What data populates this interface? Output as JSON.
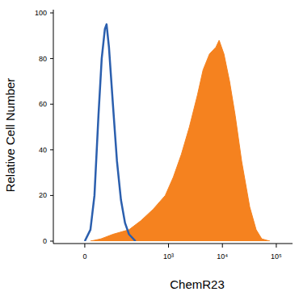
{
  "chart_data": {
    "type": "line",
    "log": "x",
    "x_label": "ChemR23",
    "y_label": "Relative Cell Number",
    "xlim": [
      -100,
      200000
    ],
    "xticks": [
      0,
      {
        "value": 1000,
        "label": "10³"
      },
      {
        "value": 10000,
        "label": "10⁴"
      },
      {
        "value": 100000,
        "label": "10⁵"
      }
    ],
    "ylim": [
      0,
      100
    ],
    "yticks": [
      0,
      20,
      40,
      60,
      80,
      100
    ],
    "series": [
      {
        "type": "area",
        "color": "#f5821f",
        "x": [
          14,
          42,
          85,
          181,
          307,
          519,
          869,
          1226,
          1730,
          2438,
          3440,
          4377,
          5758,
          7579,
          8697,
          10686,
          13600,
          17300,
          22770,
          32100,
          42300,
          53700,
          75800
        ],
        "values": [
          0,
          1,
          3,
          5,
          9,
          14,
          20,
          28,
          38,
          50,
          64,
          75,
          82,
          85,
          88,
          82,
          70,
          55,
          35,
          15,
          5,
          1,
          0
        ]
      },
      {
        "type": "line",
        "color": "#2b5fae",
        "x": [
          0,
          13.6,
          23.8,
          34.6,
          44.1,
          54.2,
          59.9,
          68.6,
          84.6,
          103.6,
          125.4,
          151,
          181,
          241
        ],
        "values": [
          0,
          5,
          20,
          55,
          80,
          93,
          95,
          85,
          60,
          35,
          18,
          8,
          3,
          0
        ]
      }
    ]
  }
}
